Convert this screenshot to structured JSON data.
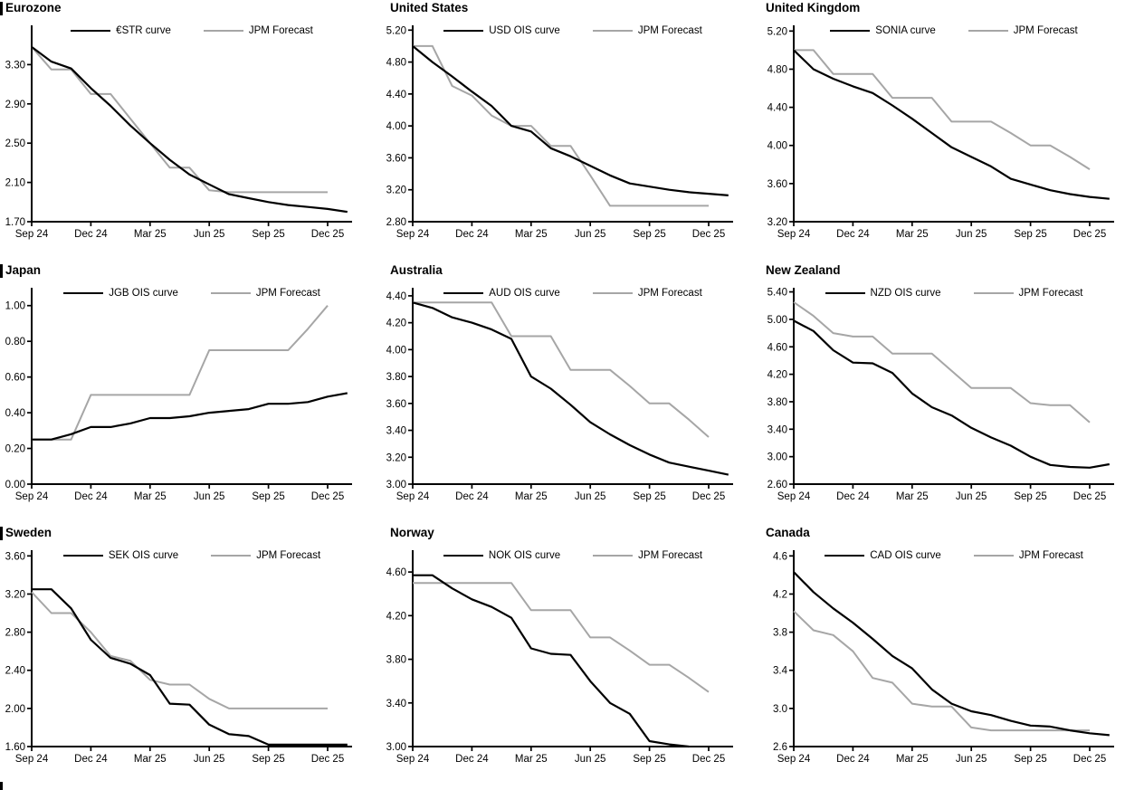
{
  "colors": {
    "curve": "#000000",
    "forecast": "#a6a6a6",
    "axis": "#000000",
    "background": "#ffffff"
  },
  "x_tick_labels": [
    "Sep 24",
    "Dec 24",
    "Mar 25",
    "Jun 25",
    "Sep 25",
    "Dec 25"
  ],
  "chart_data": [
    {
      "type": "line",
      "title": "Eurozone",
      "x": [
        "Sep 24",
        "Oct 24",
        "Nov 24",
        "Dec 24",
        "Jan 25",
        "Feb 25",
        "Mar 25",
        "Apr 25",
        "May 25",
        "Jun 25",
        "Jul 25",
        "Aug 25",
        "Sep 25",
        "Oct 25",
        "Nov 25",
        "Dec 25",
        "Jan 26"
      ],
      "x_tick_labels": [
        "Sep 24",
        "Dec 24",
        "Mar 25",
        "Jun 25",
        "Sep 25",
        "Dec 25"
      ],
      "x_tick_idx": [
        0,
        3,
        6,
        9,
        12,
        15
      ],
      "ylim": [
        1.7,
        3.7
      ],
      "yticks": [
        1.7,
        2.1,
        2.5,
        2.9,
        3.3
      ],
      "y_decimals": 2,
      "grid": false,
      "legend_position": "top-center",
      "series": [
        {
          "name": "€STR curve",
          "color": "#000000",
          "values": [
            3.48,
            3.33,
            3.26,
            3.06,
            2.88,
            2.68,
            2.5,
            2.33,
            2.18,
            2.08,
            1.98,
            1.94,
            1.9,
            1.87,
            1.85,
            1.83,
            1.8
          ]
        },
        {
          "name": "JPM Forecast",
          "color": "#a6a6a6",
          "values": [
            3.48,
            3.25,
            3.25,
            3.0,
            3.0,
            2.75,
            2.5,
            2.25,
            2.25,
            2.02,
            2.0,
            2.0,
            2.0,
            2.0,
            2.0,
            2.0,
            null
          ]
        }
      ]
    },
    {
      "type": "line",
      "title": "United States",
      "x": [
        "Sep 24",
        "Oct 24",
        "Nov 24",
        "Dec 24",
        "Jan 25",
        "Feb 25",
        "Mar 25",
        "Apr 25",
        "May 25",
        "Jun 25",
        "Jul 25",
        "Aug 25",
        "Sep 25",
        "Oct 25",
        "Nov 25",
        "Dec 25",
        "Jan 26"
      ],
      "x_tick_labels": [
        "Sep 24",
        "Dec 24",
        "Mar 25",
        "Jun 25",
        "Sep 25",
        "Dec 25"
      ],
      "x_tick_idx": [
        0,
        3,
        6,
        9,
        12,
        15
      ],
      "ylim": [
        2.8,
        5.26
      ],
      "yticks": [
        2.8,
        3.2,
        3.6,
        4.0,
        4.4,
        4.8,
        5.2
      ],
      "y_decimals": 2,
      "grid": false,
      "legend_position": "top-center",
      "series": [
        {
          "name": "USD OIS curve",
          "color": "#000000",
          "values": [
            5.0,
            4.8,
            4.62,
            4.43,
            4.25,
            4.0,
            3.93,
            3.72,
            3.62,
            3.5,
            3.38,
            3.28,
            3.24,
            3.2,
            3.17,
            3.15,
            3.13
          ]
        },
        {
          "name": "JPM Forecast",
          "color": "#a6a6a6",
          "values": [
            5.0,
            5.0,
            4.5,
            4.38,
            4.13,
            4.0,
            4.0,
            3.75,
            3.75,
            3.38,
            3.0,
            3.0,
            3.0,
            3.0,
            3.0,
            3.0,
            null
          ]
        }
      ]
    },
    {
      "type": "line",
      "title": "United Kingdom",
      "x": [
        "Sep 24",
        "Oct 24",
        "Nov 24",
        "Dec 24",
        "Jan 25",
        "Feb 25",
        "Mar 25",
        "Apr 25",
        "May 25",
        "Jun 25",
        "Jul 25",
        "Aug 25",
        "Sep 25",
        "Oct 25",
        "Nov 25",
        "Dec 25",
        "Jan 26"
      ],
      "x_tick_labels": [
        "Sep 24",
        "Dec 24",
        "Mar 25",
        "Jun 25",
        "Sep 25",
        "Dec 25"
      ],
      "x_tick_idx": [
        0,
        3,
        6,
        9,
        12,
        15
      ],
      "ylim": [
        3.2,
        5.26
      ],
      "yticks": [
        3.2,
        3.6,
        4.0,
        4.4,
        4.8,
        5.2
      ],
      "y_decimals": 2,
      "grid": false,
      "legend_position": "top-center",
      "series": [
        {
          "name": "SONIA curve",
          "color": "#000000",
          "values": [
            5.0,
            4.8,
            4.7,
            4.62,
            4.55,
            4.42,
            4.28,
            4.13,
            3.98,
            3.88,
            3.78,
            3.65,
            3.59,
            3.53,
            3.49,
            3.46,
            3.44
          ]
        },
        {
          "name": "JPM Forecast",
          "color": "#a6a6a6",
          "values": [
            5.0,
            5.0,
            4.75,
            4.75,
            4.75,
            4.5,
            4.5,
            4.5,
            4.25,
            4.25,
            4.25,
            4.13,
            4.0,
            4.0,
            3.88,
            3.75,
            null
          ]
        }
      ]
    },
    {
      "type": "line",
      "title": "Japan",
      "x": [
        "Sep 24",
        "Oct 24",
        "Nov 24",
        "Dec 24",
        "Jan 25",
        "Feb 25",
        "Mar 25",
        "Apr 25",
        "May 25",
        "Jun 25",
        "Jul 25",
        "Aug 25",
        "Sep 25",
        "Oct 25",
        "Nov 25",
        "Dec 25",
        "Jan 26"
      ],
      "x_tick_labels": [
        "Sep 24",
        "Dec 24",
        "Mar 25",
        "Jun 25",
        "Sep 25",
        "Dec 25"
      ],
      "x_tick_idx": [
        0,
        3,
        6,
        9,
        12,
        15
      ],
      "ylim": [
        0.0,
        1.1
      ],
      "yticks": [
        0.0,
        0.2,
        0.4,
        0.6,
        0.8,
        1.0
      ],
      "y_decimals": 2,
      "grid": false,
      "legend_position": "top-center",
      "series": [
        {
          "name": "JGB OIS curve",
          "color": "#000000",
          "values": [
            0.25,
            0.25,
            0.28,
            0.32,
            0.32,
            0.34,
            0.37,
            0.37,
            0.38,
            0.4,
            0.41,
            0.42,
            0.45,
            0.45,
            0.46,
            0.49,
            0.51
          ]
        },
        {
          "name": "JPM Forecast",
          "color": "#a6a6a6",
          "values": [
            0.25,
            0.25,
            0.25,
            0.5,
            0.5,
            0.5,
            0.5,
            0.5,
            0.5,
            0.75,
            0.75,
            0.75,
            0.75,
            0.75,
            0.87,
            1.0,
            null
          ]
        }
      ]
    },
    {
      "type": "line",
      "title": "Australia",
      "x": [
        "Sep 24",
        "Oct 24",
        "Nov 24",
        "Dec 24",
        "Jan 25",
        "Feb 25",
        "Mar 25",
        "Apr 25",
        "May 25",
        "Jun 25",
        "Jul 25",
        "Aug 25",
        "Sep 25",
        "Oct 25",
        "Nov 25",
        "Dec 25",
        "Jan 26"
      ],
      "x_tick_labels": [
        "Sep 24",
        "Dec 24",
        "Mar 25",
        "Jun 25",
        "Sep 25",
        "Dec 25"
      ],
      "x_tick_idx": [
        0,
        3,
        6,
        9,
        12,
        15
      ],
      "ylim": [
        3.0,
        4.46
      ],
      "yticks": [
        3.0,
        3.2,
        3.4,
        3.6,
        3.8,
        4.0,
        4.2,
        4.4
      ],
      "y_decimals": 2,
      "grid": false,
      "legend_position": "top-center",
      "series": [
        {
          "name": "AUD OIS curve",
          "color": "#000000",
          "values": [
            4.35,
            4.31,
            4.24,
            4.2,
            4.15,
            4.08,
            3.8,
            3.71,
            3.59,
            3.46,
            3.37,
            3.29,
            3.22,
            3.16,
            3.13,
            3.1,
            3.07
          ]
        },
        {
          "name": "JPM Forecast",
          "color": "#a6a6a6",
          "values": [
            4.35,
            4.35,
            4.35,
            4.35,
            4.35,
            4.1,
            4.1,
            4.1,
            3.85,
            3.85,
            3.85,
            3.73,
            3.6,
            3.6,
            3.48,
            3.35,
            null
          ]
        }
      ]
    },
    {
      "type": "line",
      "title": "New Zealand",
      "x": [
        "Sep 24",
        "Oct 24",
        "Nov 24",
        "Dec 24",
        "Jan 25",
        "Feb 25",
        "Mar 25",
        "Apr 25",
        "May 25",
        "Jun 25",
        "Jul 25",
        "Aug 25",
        "Sep 25",
        "Oct 25",
        "Nov 25",
        "Dec 25",
        "Jan 26"
      ],
      "x_tick_labels": [
        "Sep 24",
        "Dec 24",
        "Mar 25",
        "Jun 25",
        "Sep 25",
        "Dec 25"
      ],
      "x_tick_idx": [
        0,
        3,
        6,
        9,
        12,
        15
      ],
      "ylim": [
        2.6,
        5.46
      ],
      "yticks": [
        2.6,
        3.0,
        3.4,
        3.8,
        4.2,
        4.6,
        5.0,
        5.4
      ],
      "y_decimals": 2,
      "grid": false,
      "legend_position": "top-center",
      "series": [
        {
          "name": "NZD OIS curve",
          "color": "#000000",
          "values": [
            4.98,
            4.83,
            4.55,
            4.37,
            4.36,
            4.22,
            3.92,
            3.72,
            3.6,
            3.42,
            3.28,
            3.16,
            3.0,
            2.88,
            2.85,
            2.84,
            2.89
          ]
        },
        {
          "name": "JPM Forecast",
          "color": "#a6a6a6",
          "values": [
            5.25,
            5.05,
            4.8,
            4.75,
            4.75,
            4.5,
            4.5,
            4.5,
            4.25,
            4.0,
            4.0,
            4.0,
            3.78,
            3.75,
            3.75,
            3.5,
            null
          ]
        }
      ]
    },
    {
      "type": "line",
      "title": "Sweden",
      "x": [
        "Sep 24",
        "Oct 24",
        "Nov 24",
        "Dec 24",
        "Jan 25",
        "Feb 25",
        "Mar 25",
        "Apr 25",
        "May 25",
        "Jun 25",
        "Jul 25",
        "Aug 25",
        "Sep 25",
        "Oct 25",
        "Nov 25",
        "Dec 25",
        "Jan 26"
      ],
      "x_tick_labels": [
        "Sep 24",
        "Dec 24",
        "Mar 25",
        "Jun 25",
        "Sep 25",
        "Dec 25"
      ],
      "x_tick_idx": [
        0,
        3,
        6,
        9,
        12,
        15
      ],
      "ylim": [
        1.6,
        3.66
      ],
      "yticks": [
        1.6,
        2.0,
        2.4,
        2.8,
        3.2,
        3.6
      ],
      "y_decimals": 2,
      "grid": false,
      "legend_position": "top-center",
      "series": [
        {
          "name": "SEK OIS curve",
          "color": "#000000",
          "values": [
            3.25,
            3.25,
            3.05,
            2.72,
            2.53,
            2.47,
            2.35,
            2.05,
            2.04,
            1.83,
            1.73,
            1.71,
            1.62,
            1.62,
            1.62,
            1.62,
            1.62
          ]
        },
        {
          "name": "JPM Forecast",
          "color": "#a6a6a6",
          "values": [
            3.22,
            3.0,
            3.0,
            2.8,
            2.55,
            2.5,
            2.3,
            2.25,
            2.25,
            2.1,
            2.0,
            2.0,
            2.0,
            2.0,
            2.0,
            2.0,
            null
          ]
        }
      ]
    },
    {
      "type": "line",
      "title": "Norway",
      "x": [
        "Sep 24",
        "Oct 24",
        "Nov 24",
        "Dec 24",
        "Jan 25",
        "Feb 25",
        "Mar 25",
        "Apr 25",
        "May 25",
        "Jun 25",
        "Jul 25",
        "Aug 25",
        "Sep 25",
        "Oct 25",
        "Nov 25",
        "Dec 25",
        "Jan 26"
      ],
      "x_tick_labels": [
        "Sep 24",
        "Dec 24",
        "Mar 25",
        "Jun 25",
        "Sep 25",
        "Dec 25"
      ],
      "x_tick_idx": [
        0,
        3,
        6,
        9,
        12,
        15
      ],
      "ylim": [
        3.0,
        4.8
      ],
      "yticks": [
        3.0,
        3.4,
        3.8,
        4.2,
        4.6
      ],
      "y_decimals": 2,
      "grid": false,
      "legend_position": "top-center",
      "series": [
        {
          "name": "NOK OIS curve",
          "color": "#000000",
          "values": [
            4.57,
            4.57,
            4.45,
            4.35,
            4.28,
            4.18,
            3.9,
            3.85,
            3.84,
            3.6,
            3.4,
            3.3,
            3.05,
            3.02,
            3.0,
            null,
            null
          ]
        },
        {
          "name": "JPM Forecast",
          "color": "#a6a6a6",
          "values": [
            4.5,
            4.5,
            4.5,
            4.5,
            4.5,
            4.5,
            4.25,
            4.25,
            4.25,
            4.0,
            4.0,
            3.88,
            3.75,
            3.75,
            3.63,
            3.5,
            null
          ]
        }
      ]
    },
    {
      "type": "line",
      "title": "Canada",
      "x": [
        "Sep 24",
        "Oct 24",
        "Nov 24",
        "Dec 24",
        "Jan 25",
        "Feb 25",
        "Mar 25",
        "Apr 25",
        "May 25",
        "Jun 25",
        "Jul 25",
        "Aug 25",
        "Sep 25",
        "Oct 25",
        "Nov 25",
        "Dec 25",
        "Jan 26"
      ],
      "x_tick_labels": [
        "Sep 24",
        "Dec 24",
        "Mar 25",
        "Jun 25",
        "Sep 25",
        "Dec 25"
      ],
      "x_tick_idx": [
        0,
        3,
        6,
        9,
        12,
        15
      ],
      "ylim": [
        2.6,
        4.66
      ],
      "yticks": [
        2.6,
        3.0,
        3.4,
        3.8,
        4.2,
        4.6
      ],
      "y_decimals": 1,
      "grid": false,
      "legend_position": "top-center",
      "series": [
        {
          "name": "CAD OIS curve",
          "color": "#000000",
          "values": [
            4.43,
            4.22,
            4.05,
            3.9,
            3.73,
            3.55,
            3.42,
            3.2,
            3.05,
            2.97,
            2.93,
            2.87,
            2.82,
            2.81,
            2.77,
            2.74,
            2.72
          ]
        },
        {
          "name": "JPM Forecast",
          "color": "#a6a6a6",
          "values": [
            4.02,
            3.82,
            3.77,
            3.6,
            3.32,
            3.27,
            3.05,
            3.02,
            3.02,
            2.8,
            2.77,
            2.77,
            2.77,
            2.77,
            2.77,
            2.77,
            null
          ]
        }
      ]
    }
  ]
}
